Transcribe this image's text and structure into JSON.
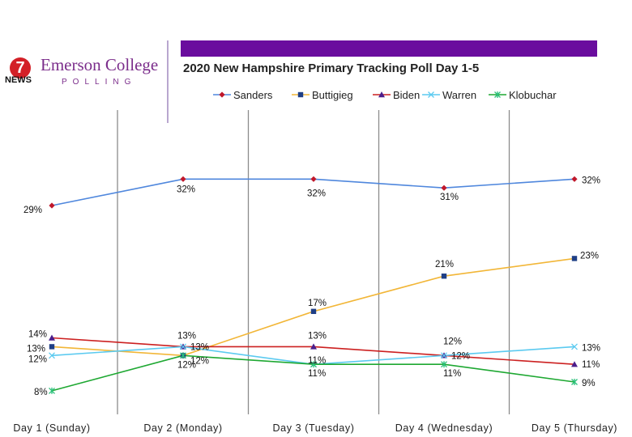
{
  "colors": {
    "header_bar": "#6a0d9e",
    "brand_purple": "#7b2d8b",
    "news_red": "#d32027",
    "gridline": "#8c8c8c"
  },
  "logo": {
    "badge": "7",
    "news": "NEWS",
    "college": "Emerson College",
    "polling": "POLLING"
  },
  "chart_data": {
    "type": "line",
    "title": "2020 New Hampshire Primary Tracking Poll Day 1-5",
    "categories": [
      "Day 1 (Sunday)",
      "Day 2 (Monday)",
      "Day 3 (Tuesday)",
      "Day 4 (Wednesday)",
      "Day 5 (Thursday)"
    ],
    "grid": "vertical lines between days",
    "legend": "top",
    "series": [
      {
        "name": "Sanders",
        "values": [
          29,
          32,
          32,
          31,
          32
        ],
        "labels": [
          "29%",
          "32%",
          "32%",
          "31%",
          "32%"
        ],
        "color": "#4f87dd",
        "marker": "diamond",
        "marker_color": "#c0182b"
      },
      {
        "name": "Buttigieg",
        "values": [
          13,
          12,
          17,
          21,
          23
        ],
        "labels": [
          "13%",
          "12%",
          "17%",
          "21%",
          "23%"
        ],
        "color": "#f2b637",
        "marker": "square",
        "marker_color": "#1f3f86"
      },
      {
        "name": "Biden",
        "values": [
          14,
          13,
          13,
          12,
          11
        ],
        "labels": [
          "14%",
          "13%",
          "13%",
          "12%",
          "11%"
        ],
        "color": "#cc2020",
        "marker": "triangle",
        "marker_color": "#4b1e8c"
      },
      {
        "name": "Warren",
        "values": [
          12,
          13,
          11,
          12,
          13
        ],
        "labels": [
          "12%",
          "13%",
          "11%",
          "12%",
          "13%"
        ],
        "color": "#5bcaf0",
        "marker": "x",
        "marker_color": "#5bcaf0"
      },
      {
        "name": "Klobuchar",
        "values": [
          8,
          12,
          11,
          11,
          9
        ],
        "labels": [
          "8%",
          "12%",
          "11%",
          "11%",
          "9%"
        ],
        "color": "#1ea832",
        "marker": "star",
        "marker_color": "#29c07a"
      }
    ]
  }
}
